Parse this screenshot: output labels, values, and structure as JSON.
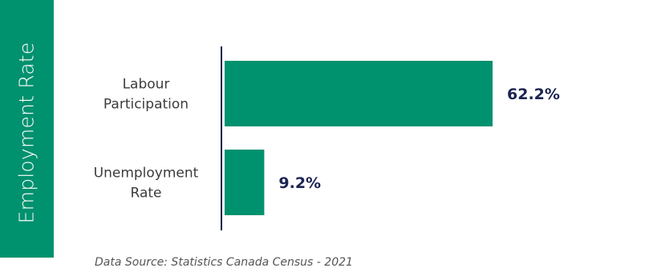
{
  "side_title": "Employment Rate",
  "source": "Data Source: Statistics Canada Census - 2021",
  "colors": {
    "bar": "#00916e",
    "value_label": "#1c2452",
    "category_label": "#3c3c3c",
    "axis": "#1c2452"
  },
  "chart_data": {
    "type": "bar",
    "orientation": "horizontal",
    "categories": [
      [
        "Labour",
        "Participation"
      ],
      [
        "Unemployment",
        "Rate"
      ]
    ],
    "values": [
      62.2,
      9.2
    ],
    "value_labels": [
      "62.2%",
      "9.2%"
    ],
    "xlim": [
      0,
      100
    ],
    "grid": false
  }
}
